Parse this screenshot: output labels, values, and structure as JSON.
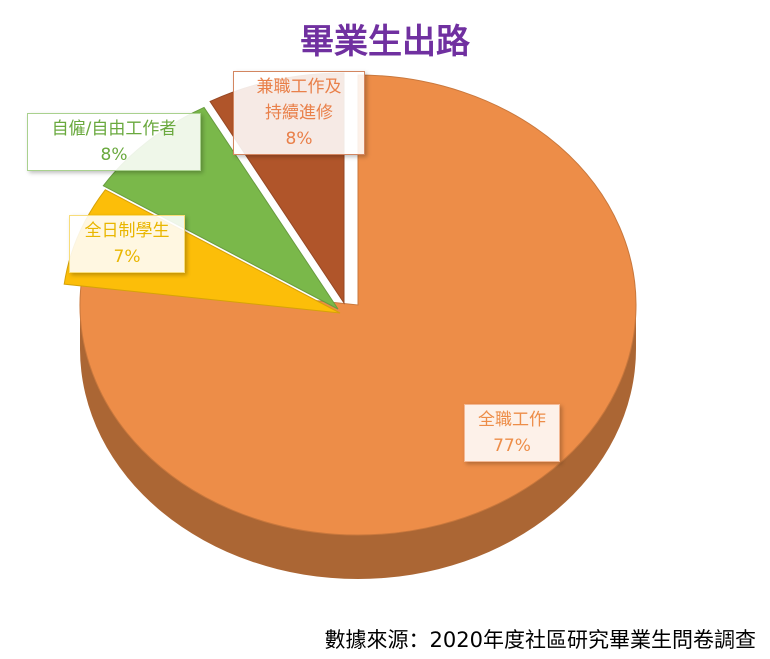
{
  "chart_data": {
    "type": "pie",
    "title": "畢業生出路",
    "categories": [
      "全職工作",
      "全日制學生",
      "自僱/自由工作者",
      "兼職工作及持續進修"
    ],
    "values": [
      77,
      7,
      8,
      8
    ],
    "value_labels": [
      "77%",
      "7%",
      "8%",
      "8%"
    ],
    "label_lines": [
      [
        "全職工作"
      ],
      [
        "全日制學生"
      ],
      [
        "自僱/自由工作者"
      ],
      [
        "兼職工作及",
        "持續進修"
      ]
    ],
    "colors": [
      "#ed8d48",
      "#fcbe09",
      "#7ab84a",
      "#b0552a"
    ],
    "label_text_colors": [
      "#ed8d48",
      "#e9b600",
      "#6aa93e",
      "#e9804a"
    ],
    "label_border_colors": [
      "#f3b894",
      "#f8dd7a",
      "#a9d18e",
      "#d38660"
    ],
    "style": "3d-exploded",
    "legend": "none"
  },
  "source_note": "數據來源：2020年度社區研究畢業生問卷調查"
}
